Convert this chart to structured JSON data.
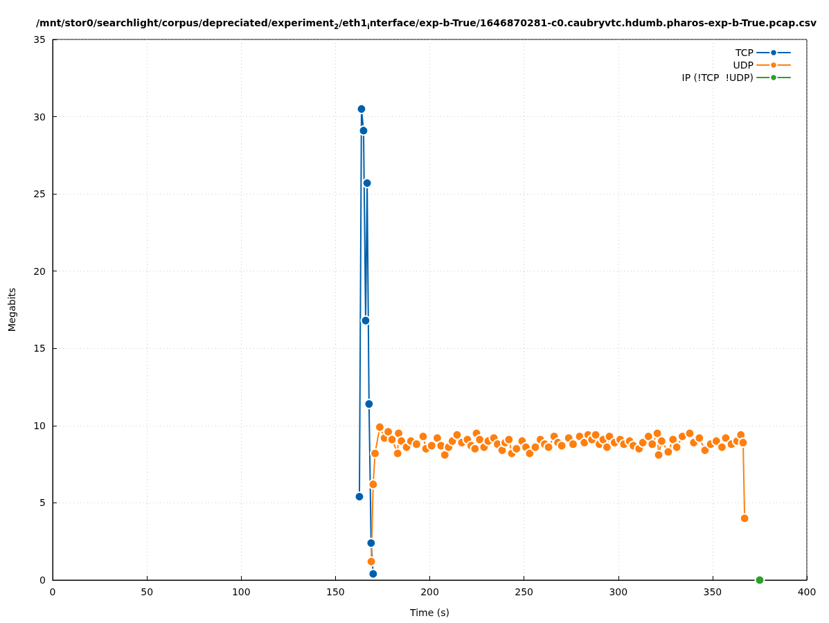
{
  "chart_data": {
    "type": "line",
    "title": "/mnt/stor0/searchlight/corpus/depreciated/experiment$_{2}$/eth1$_{i}$nterface/exp-b-True/1646870281-c0.caubryvtc.hdumb.pharos-exp-b-True.pcap.csv",
    "xlabel": "Time (s)",
    "ylabel": "Megabits",
    "xlim": [
      0,
      400
    ],
    "xticks": [
      0,
      50,
      100,
      150,
      200,
      250,
      300,
      350,
      400
    ],
    "ylim": [
      0,
      35
    ],
    "yticks": [
      0,
      5,
      10,
      15,
      20,
      25,
      30,
      35
    ],
    "grid": true,
    "legend": "top right",
    "marker": "circle",
    "line_style": "solid",
    "series": [
      {
        "name": "TCP",
        "color": "#0060ad",
        "x": [
          162.7,
          163.8,
          164.9,
          166,
          166.8,
          167.8,
          168.9,
          170
        ],
        "values": [
          5.4,
          30.5,
          29.1,
          16.8,
          25.7,
          11.4,
          2.4,
          0.4
        ]
      },
      {
        "name": "UDP",
        "color": "#ff7f0e",
        "x": [
          169,
          170,
          171,
          173.5,
          176,
          178,
          180,
          183,
          183.5,
          185,
          187.7,
          190,
          193,
          196.5,
          198,
          201,
          204,
          206,
          208,
          210,
          212,
          214.5,
          217,
          220,
          222,
          224,
          224.8,
          226.5,
          228.8,
          231,
          234,
          236,
          238.4,
          240,
          242,
          243.5,
          246,
          249,
          251,
          253,
          256,
          258.7,
          261,
          263,
          266,
          268,
          270,
          273.7,
          276,
          279.5,
          282,
          284,
          286,
          288,
          290,
          292,
          294,
          295.3,
          298,
          301,
          303,
          306,
          308,
          311,
          313,
          316,
          318,
          320.7,
          321.4,
          323,
          326.5,
          329,
          331,
          334,
          337.9,
          340,
          343,
          346,
          349,
          352,
          355,
          357,
          360,
          363,
          365,
          366.2,
          367
        ],
        "values": [
          1.2,
          6.2,
          8.2,
          9.9,
          9.2,
          9.6,
          9.1,
          8.2,
          9.5,
          9.0,
          8.6,
          9.0,
          8.8,
          9.3,
          8.5,
          8.7,
          9.2,
          8.7,
          8.1,
          8.6,
          9.0,
          9.4,
          8.9,
          9.1,
          8.7,
          8.5,
          9.5,
          9.1,
          8.6,
          9.0,
          9.2,
          8.8,
          8.4,
          8.9,
          9.1,
          8.2,
          8.5,
          9.0,
          8.6,
          8.2,
          8.6,
          9.1,
          8.8,
          8.6,
          9.3,
          8.9,
          8.7,
          9.2,
          8.8,
          9.3,
          8.9,
          9.4,
          9.1,
          9.4,
          8.8,
          9.1,
          8.6,
          9.3,
          8.9,
          9.1,
          8.8,
          9.0,
          8.7,
          8.5,
          8.9,
          9.3,
          8.8,
          9.5,
          8.1,
          9.0,
          8.3,
          9.1,
          8.6,
          9.3,
          9.5,
          8.9,
          9.2,
          8.4,
          8.8,
          9.0,
          8.6,
          9.2,
          8.8,
          9.0,
          9.4,
          8.9,
          4.0
        ]
      },
      {
        "name": "IP (!TCP  !UDP)",
        "color": "#2ca02c",
        "x": [
          375
        ],
        "values": [
          0
        ]
      }
    ]
  }
}
